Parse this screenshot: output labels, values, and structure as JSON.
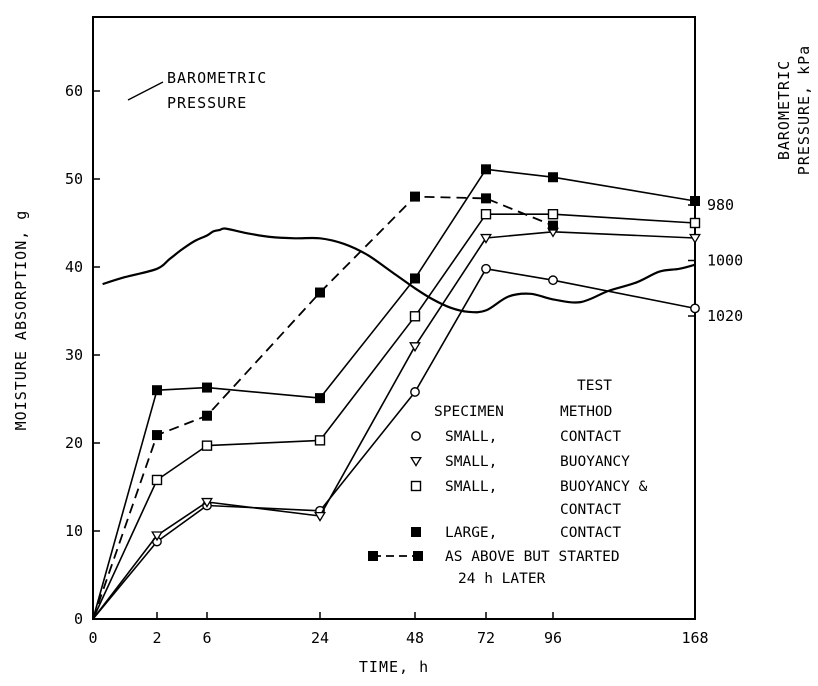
{
  "chart_data": {
    "type": "line",
    "xlabel": "TIME, h",
    "ylabel": "MOISTURE ABSORPTION, g",
    "y2label_line1": "BAROMETRIC",
    "y2label_line2": "PRESSURE, kPa",
    "x_ticks": [
      "0",
      "2",
      "6",
      "24",
      "48",
      "72",
      "96",
      "168"
    ],
    "ylim": [
      0,
      65
    ],
    "y_ticks": [
      0,
      10,
      20,
      30,
      40,
      50,
      60
    ],
    "y2_ticks": [
      980,
      1000,
      1020
    ],
    "y2lim": [
      980,
      1020
    ],
    "grid": false,
    "pressure_annotation": [
      "BAROMETRIC",
      "PRESSURE"
    ],
    "pressure_curve": {
      "name": "BAROMETRIC PRESSURE",
      "x": [
        0.3,
        1,
        2,
        3,
        4,
        5,
        6,
        7,
        8,
        9,
        12,
        16,
        20,
        24,
        30,
        36,
        42,
        48,
        54,
        60,
        66,
        72,
        80,
        88,
        96,
        110,
        124,
        138,
        150,
        160,
        168
      ],
      "values": [
        1008.5,
        1006,
        1003,
        999.5,
        996,
        993,
        991,
        989.5,
        989,
        988.5,
        990,
        991.5,
        992,
        992,
        994,
        998,
        1004,
        1010,
        1014,
        1017,
        1018.5,
        1018,
        1013,
        1012,
        1014,
        1015,
        1011,
        1008,
        1004,
        1003,
        1001.5
      ]
    },
    "series": [
      {
        "name": "SMALL, CONTACT",
        "marker": "open-circle",
        "dashed": false,
        "x": [
          0,
          2,
          6,
          24,
          48,
          72,
          96,
          168
        ],
        "values": [
          0,
          8.8,
          12.9,
          12.3,
          25.8,
          39.8,
          38.5,
          35.3
        ]
      },
      {
        "name": "SMALL, BUOYANCY",
        "marker": "open-triangle",
        "dashed": false,
        "x": [
          0,
          2,
          6,
          24,
          48,
          72,
          96,
          168
        ],
        "values": [
          0,
          9.5,
          13.3,
          11.7,
          31,
          43.3,
          44,
          43.3
        ]
      },
      {
        "name": "SMALL, BUOYANCY & CONTACT",
        "marker": "open-square",
        "dashed": false,
        "x": [
          0,
          2,
          6,
          24,
          48,
          72,
          96,
          168
        ],
        "values": [
          0,
          15.8,
          19.7,
          20.3,
          34.4,
          46,
          46,
          45
        ]
      },
      {
        "name": "LARGE, CONTACT",
        "marker": "filled-square",
        "dashed": false,
        "x": [
          0,
          2,
          6,
          24,
          48,
          72,
          96,
          168
        ],
        "values": [
          0,
          26,
          26.3,
          25.1,
          38.7,
          51.1,
          50.2,
          47.5
        ]
      },
      {
        "name": "AS ABOVE BUT STARTED 24 h LATER",
        "marker": "filled-square",
        "dashed": true,
        "x": [
          0,
          2,
          6,
          24,
          48,
          72,
          96
        ],
        "values": [
          0,
          20.9,
          23.1,
          37.1,
          48,
          47.8,
          44.7
        ]
      }
    ],
    "legend": {
      "placement": "lower-right",
      "header_col1": "SPECIMEN",
      "header_col2_line1": "TEST",
      "header_col2_line2": "METHOD",
      "rows": [
        {
          "specimen": "SMALL,",
          "method": "CONTACT",
          "marker": "open-circle"
        },
        {
          "specimen": "SMALL,",
          "method": "BUOYANCY",
          "marker": "open-triangle"
        },
        {
          "specimen": "SMALL,",
          "method": "BUOYANCY &",
          "method2": "CONTACT",
          "marker": "open-square"
        },
        {
          "specimen": "LARGE,",
          "method": "CONTACT",
          "marker": "filled-square"
        },
        {
          "specimen": "AS ABOVE BUT STARTED",
          "specimen2": "24 h LATER",
          "marker": "dashed-filled-square"
        }
      ]
    }
  }
}
